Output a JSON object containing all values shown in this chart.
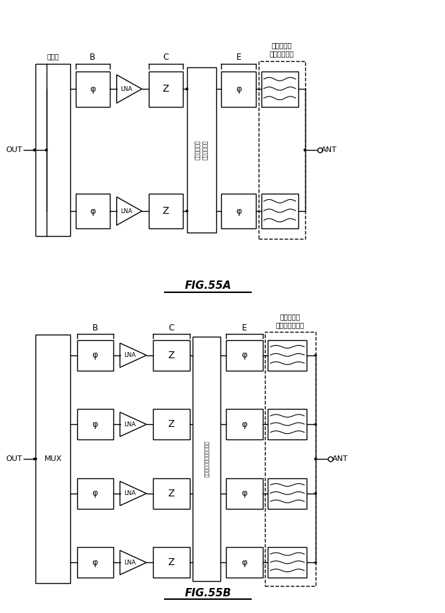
{
  "fig_width": 6.4,
  "fig_height": 8.83,
  "bg_color": "#ffffff",
  "fig55a": {
    "title": "FIG.55A",
    "label_B": "B",
    "label_C": "C",
    "label_E": "E",
    "label_filter": "フィルタ／\nダイプレクサ",
    "label_coupler": "結合器",
    "label_switch": "スイッチング\nネットワーク",
    "label_out": "OUT",
    "label_ant": "ANT",
    "label_phi": "φ",
    "label_lna": "LNA",
    "label_z": "Z"
  },
  "fig55b": {
    "title": "FIG.55B",
    "label_B": "B",
    "label_C": "C",
    "label_E": "E",
    "label_filter": "フィルタ／\nマルチプレクサ",
    "label_switch": "スイッチングネットワーク",
    "label_out": "OUT",
    "label_ant": "ANT",
    "label_mux": "MUX",
    "label_phi": "φ",
    "label_lna": "LNA",
    "label_z": "Z"
  }
}
